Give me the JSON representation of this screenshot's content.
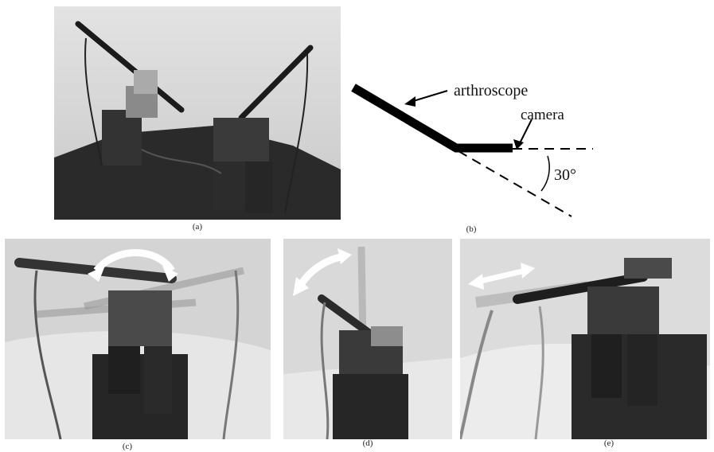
{
  "panels": [
    {
      "caption": "(a)"
    },
    {
      "caption": "(b)"
    },
    {
      "caption": "(c)"
    },
    {
      "caption": "(d)"
    },
    {
      "caption": "(e)"
    }
  ],
  "diagram": {
    "arthroscope_label": "arthroscope",
    "camera_label": "camera",
    "angle_label": "30°"
  }
}
